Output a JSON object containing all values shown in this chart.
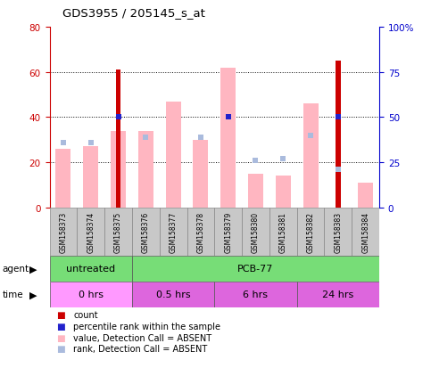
{
  "title": "GDS3955 / 205145_s_at",
  "samples": [
    "GSM158373",
    "GSM158374",
    "GSM158375",
    "GSM158376",
    "GSM158377",
    "GSM158378",
    "GSM158379",
    "GSM158380",
    "GSM158381",
    "GSM158382",
    "GSM158383",
    "GSM158384"
  ],
  "count_values": [
    0,
    0,
    61,
    0,
    0,
    0,
    0,
    0,
    0,
    0,
    65,
    0
  ],
  "percentile_rank": [
    null,
    null,
    50,
    null,
    null,
    null,
    50,
    null,
    null,
    null,
    50,
    null
  ],
  "value_absent": [
    26,
    27,
    34,
    34,
    47,
    30,
    62,
    15,
    14,
    46,
    null,
    11
  ],
  "rank_absent": [
    36,
    36,
    null,
    39,
    null,
    39,
    50,
    26,
    27,
    40,
    21,
    null
  ],
  "ylim_left": [
    0,
    80
  ],
  "ylim_right": [
    0,
    100
  ],
  "yticks_left": [
    0,
    20,
    40,
    60,
    80
  ],
  "yticks_right": [
    0,
    25,
    50,
    75,
    100
  ],
  "ytick_labels_right": [
    "0",
    "25",
    "50",
    "75",
    "100%"
  ],
  "agent_groups": [
    {
      "label": "untreated",
      "start": 0,
      "end": 3
    },
    {
      "label": "PCB-77",
      "start": 3,
      "end": 12
    }
  ],
  "time_groups": [
    {
      "label": "0 hrs",
      "start": 0,
      "end": 3
    },
    {
      "label": "0.5 hrs",
      "start": 3,
      "end": 6
    },
    {
      "label": "6 hrs",
      "start": 6,
      "end": 9
    },
    {
      "label": "24 hrs",
      "start": 9,
      "end": 12
    }
  ],
  "count_color": "#CC0000",
  "percentile_color": "#2222CC",
  "value_absent_color": "#FFB6C1",
  "rank_absent_color": "#AABBDD",
  "agent_color": "#77DD77",
  "time_color_light": "#FF99FF",
  "time_color_dark": "#DD66DD",
  "label_bg": "#C8C8C8",
  "left_tick_color": "#CC0000",
  "right_tick_color": "#0000CC"
}
